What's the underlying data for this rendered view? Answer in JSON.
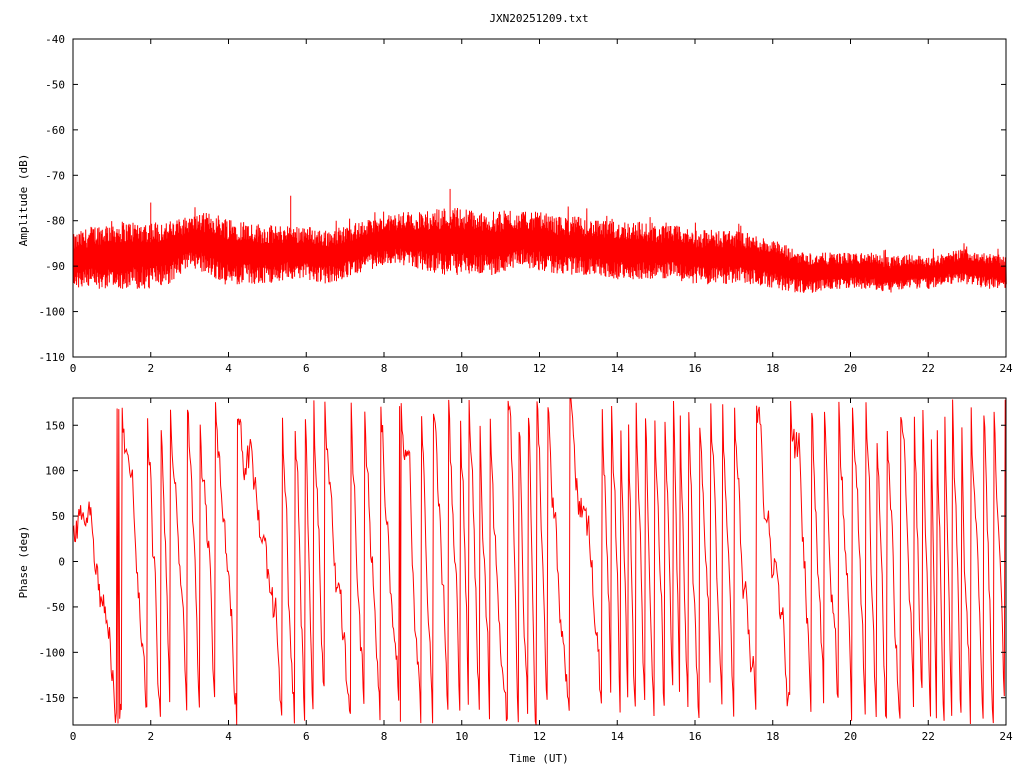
{
  "title": "JXN20251209.txt",
  "colors": {
    "series": "#ff0000",
    "axes": "#000000",
    "background": "#ffffff"
  },
  "chart_data": [
    {
      "type": "line",
      "title": "JXN20251209.txt",
      "xlabel": "",
      "ylabel": "Amplitude (dB)",
      "xlim": [
        0,
        24
      ],
      "ylim": [
        -110,
        -40
      ],
      "xticks": [
        "0",
        "2",
        "4",
        "6",
        "8",
        "10",
        "12",
        "14",
        "16",
        "18",
        "20",
        "22",
        "24"
      ],
      "yticks": [
        "-40",
        "-50",
        "-60",
        "-70",
        "-80",
        "-90",
        "-100",
        "-110"
      ],
      "grid": false,
      "legend": "none",
      "series": [
        {
          "color": "#ff0000",
          "x": [
            0,
            0.5,
            1,
            1.5,
            2,
            2.5,
            3,
            3.5,
            4,
            4.5,
            5,
            5.5,
            6,
            6.5,
            7,
            7.5,
            8,
            8.5,
            9,
            9.5,
            10,
            10.5,
            11,
            11.5,
            12,
            12.5,
            13,
            13.5,
            14,
            14.5,
            15,
            15.5,
            16,
            16.5,
            17,
            17.5,
            18,
            18.5,
            19,
            19.5,
            20,
            20.5,
            21,
            21.5,
            22,
            22.5,
            23,
            23.5,
            24
          ],
          "y_upper": [
            -83,
            -81,
            -80,
            -80,
            -80,
            -80,
            -79,
            -78,
            -79,
            -80,
            -81,
            -81,
            -81,
            -82,
            -81,
            -80,
            -79,
            -78,
            -78,
            -77,
            -77,
            -78,
            -78,
            -78,
            -78,
            -79,
            -79,
            -80,
            -80,
            -80,
            -81,
            -81,
            -82,
            -82,
            -82,
            -83,
            -84,
            -86,
            -87,
            -87,
            -87,
            -87,
            -88,
            -87,
            -88,
            -87,
            -86,
            -87,
            -88
          ],
          "y_lower": [
            -95,
            -95,
            -95,
            -95,
            -95,
            -94,
            -90,
            -92,
            -95,
            -94,
            -94,
            -93,
            -93,
            -94,
            -93,
            -91,
            -90,
            -90,
            -91,
            -92,
            -92,
            -92,
            -92,
            -90,
            -91,
            -92,
            -92,
            -92,
            -93,
            -93,
            -93,
            -93,
            -94,
            -94,
            -94,
            -94,
            -95,
            -96,
            -96,
            -95,
            -95,
            -95,
            -96,
            -95,
            -95,
            -94,
            -94,
            -95,
            -95
          ],
          "peaks": [
            {
              "x": 9.7,
              "y": -73
            },
            {
              "x": 5.6,
              "y": -74.5
            },
            {
              "x": 2.0,
              "y": -76
            }
          ]
        }
      ]
    },
    {
      "type": "line",
      "title": "",
      "xlabel": "Time (UT)",
      "ylabel": "Phase (deg)",
      "xlim": [
        0,
        24
      ],
      "ylim": [
        -180,
        180
      ],
      "xticks": [
        "0",
        "2",
        "4",
        "6",
        "8",
        "10",
        "12",
        "14",
        "16",
        "18",
        "20",
        "22",
        "24"
      ],
      "yticks": [
        "150",
        "100",
        "50",
        "0",
        "-50",
        "-100",
        "-150"
      ],
      "grid": false,
      "legend": "none",
      "series": [
        {
          "color": "#ff0000",
          "description_range": [
            -180,
            180
          ],
          "wrapped": true
        }
      ]
    }
  ]
}
